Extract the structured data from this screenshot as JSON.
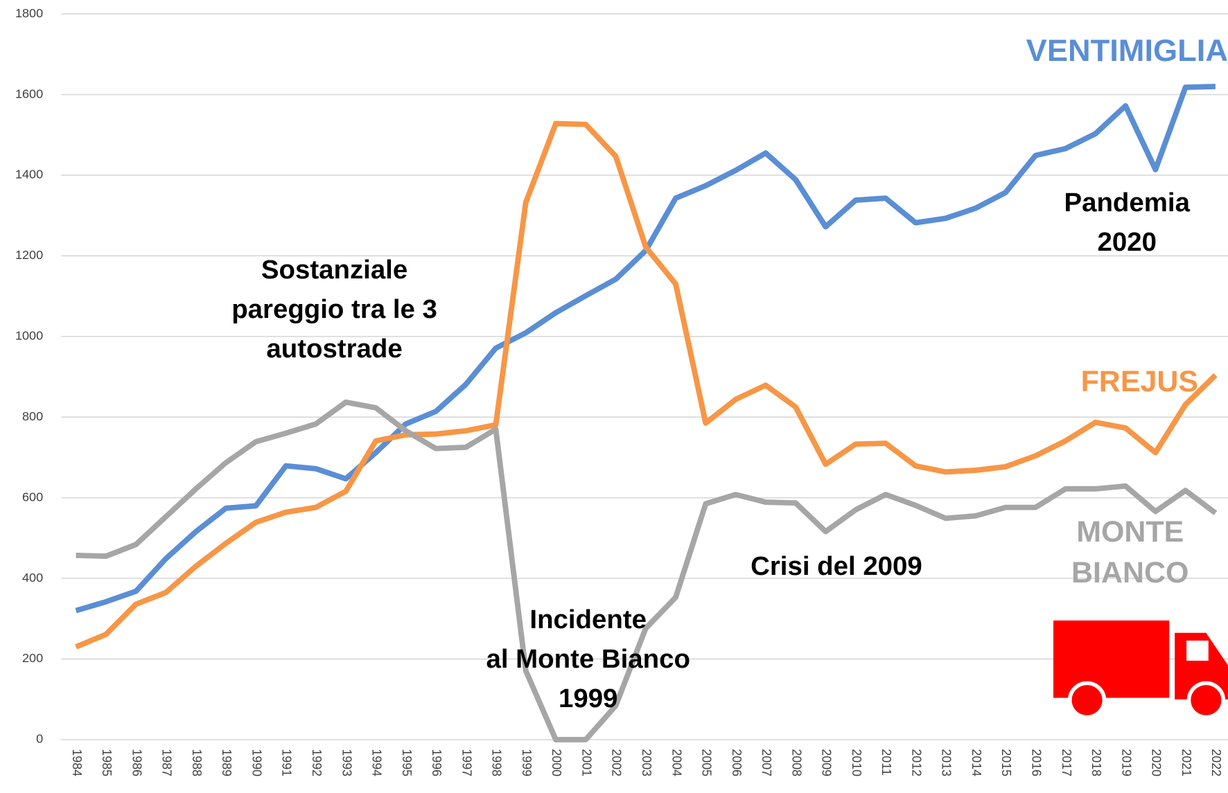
{
  "chart_data": {
    "type": "line",
    "categories": [
      "1984",
      "1985",
      "1986",
      "1987",
      "1988",
      "1989",
      "1990",
      "1991",
      "1992",
      "1993",
      "1994",
      "1995",
      "1996",
      "1997",
      "1998",
      "1999",
      "2000",
      "2001",
      "2002",
      "2003",
      "2004",
      "2005",
      "2006",
      "2007",
      "2008",
      "2009",
      "2010",
      "2011",
      "2012",
      "2013",
      "2014",
      "2015",
      "2016",
      "2017",
      "2018",
      "2019",
      "2020",
      "2021",
      "2022"
    ],
    "series": [
      {
        "name": "VENTIMIGLIA",
        "color": "#5a8ed5",
        "values": [
          320,
          342,
          368,
          449,
          516,
          574,
          580,
          679,
          672,
          647,
          712,
          783,
          814,
          881,
          971,
          1009,
          1059,
          1101,
          1142,
          1213,
          1343,
          1374,
          1412,
          1455,
          1389,
          1272,
          1338,
          1343,
          1282,
          1293,
          1318,
          1357,
          1449,
          1466,
          1503,
          1572,
          1414,
          1618,
          1620
        ]
      },
      {
        "name": "FREJUS",
        "color": "#f79646",
        "values": [
          230,
          261,
          336,
          365,
          430,
          487,
          539,
          564,
          576,
          616,
          741,
          756,
          758,
          766,
          781,
          1332,
          1528,
          1526,
          1447,
          1222,
          1130,
          785,
          844,
          879,
          825,
          683,
          733,
          735,
          679,
          664,
          668,
          677,
          704,
          741,
          787,
          773,
          712,
          831,
          904
        ]
      },
      {
        "name": "MONTE BIANCO",
        "color": "#a6a6a6",
        "values": [
          457,
          455,
          484,
          553,
          622,
          687,
          739,
          760,
          783,
          837,
          823,
          766,
          722,
          725,
          770,
          171,
          0,
          0,
          84,
          276,
          353,
          585,
          608,
          589,
          587,
          516,
          570,
          608,
          581,
          549,
          555,
          576,
          576,
          622,
          622,
          629,
          566,
          618,
          562
        ]
      }
    ],
    "ylim": [
      0,
      1800
    ],
    "yticks": [
      0,
      200,
      400,
      600,
      800,
      1000,
      1200,
      1400,
      1600,
      1800
    ],
    "grid": true,
    "annotations": [
      {
        "lines": [
          "Sostanziale",
          "pareggio tra le 3",
          "autostrade"
        ]
      },
      {
        "lines": [
          "Pandemia",
          "2020"
        ]
      },
      {
        "lines": [
          "Incidente",
          "al Monte Bianco",
          "1999"
        ]
      },
      {
        "lines": [
          "Crisi del 2009"
        ]
      }
    ]
  }
}
